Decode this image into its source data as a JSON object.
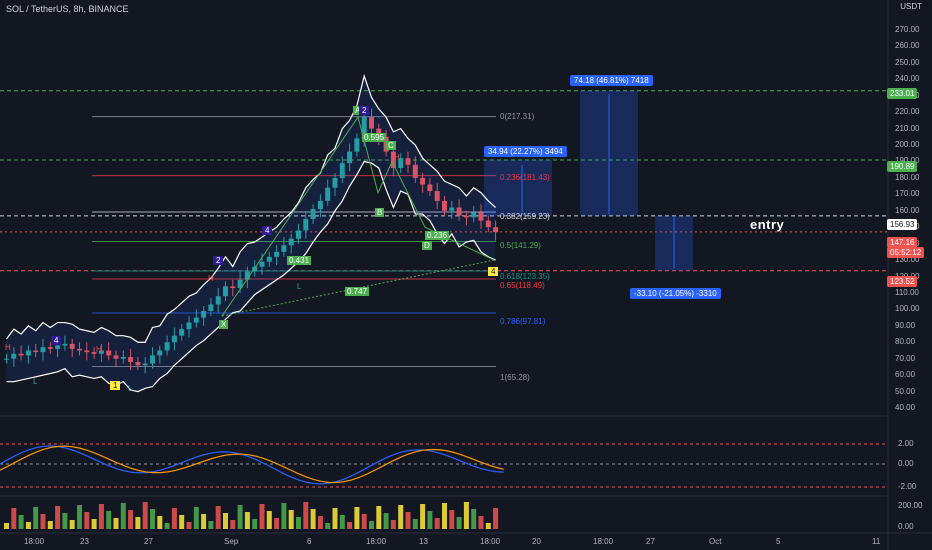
{
  "header": {
    "title": "SOL / TetherUS, 8h, BINANCE",
    "currency": "USDT"
  },
  "price_axis": {
    "ticks": [
      "270.00",
      "260.00",
      "250.00",
      "240.00",
      "230.00",
      "220.00",
      "210.00",
      "200.00",
      "190.00",
      "180.00",
      "170.00",
      "160.00",
      "150.00",
      "140.00",
      "130.00",
      "120.00",
      "110.00",
      "100.00",
      "90.00",
      "80.00",
      "70.00",
      "60.00",
      "50.00",
      "40.00"
    ],
    "badges": {
      "target_high": "233.01",
      "target_mid": "190.89",
      "entry_price": "156.93",
      "current_price": "147.16",
      "countdown": "05:52:12",
      "stop": "123.52"
    }
  },
  "indicator_axis": {
    "osc_ticks": [
      "2.00",
      "0.00",
      "-2.00"
    ],
    "vol_ticks": [
      "200.00",
      "0.00"
    ]
  },
  "time_axis": [
    "18:00",
    "23",
    "27",
    "Sep",
    "6",
    "18:00",
    "13",
    "18:00",
    "20",
    "18:00",
    "27",
    "Oct",
    "5",
    "11"
  ],
  "fib_levels": [
    {
      "label": "0(217.31)",
      "color": "#9598a1"
    },
    {
      "label": "0.236(181.43)",
      "color": "#f23645"
    },
    {
      "label": "0.382(159.23)",
      "color": "#d1d4dc"
    },
    {
      "label": "0.5(141.29)",
      "color": "#4caf50"
    },
    {
      "label": "0.618(123.35)",
      "color": "#089981"
    },
    {
      "label": "0.65(118.49)",
      "color": "#f23645"
    },
    {
      "label": "0.786(97.81)",
      "color": "#2962ff"
    },
    {
      "label": "1(65.28)",
      "color": "#9598a1"
    }
  ],
  "position_boxes": {
    "long_small": "34.94 (22.27%) 3494",
    "long_big": "74.18 (46.81%) 7418",
    "short": "-33.10 (-21.05%) -3310"
  },
  "pattern_labels": {
    "ratio_1": "0.595",
    "ratio_2": "0.431",
    "ratio_3": "0.236",
    "ratio_4": "0.747",
    "point_x": "X",
    "point_a": "A",
    "point_b": "B",
    "point_c": "C",
    "point_d": "D",
    "h1": "H",
    "h2": "H",
    "h3": "H",
    "h4": "H",
    "l1": "L",
    "l2": "L",
    "l3": "L",
    "wave_1": "1",
    "wave_2a": "2",
    "wave_2b": "2",
    "wave_4a": "4",
    "wave_4b": "4",
    "wave_4c": "4"
  },
  "annotation": {
    "entry": "entry"
  },
  "colors": {
    "background": "#131722",
    "up": "#26a69a",
    "down": "#ef5350",
    "accent": "#2962ff",
    "band": "#ffffff"
  },
  "chart_data": {
    "type": "candlestick",
    "symbol": "SOL / TetherUS",
    "interval": "8h",
    "ylim": [
      40,
      280
    ],
    "levels": {
      "target_high": 233.01,
      "target_mid": 190.89,
      "entry": 156.93,
      "current": 147.16,
      "stop": 123.52
    },
    "fib_values": [
      217.31,
      181.43,
      159.23,
      141.29,
      123.35,
      118.49,
      97.81,
      65.28
    ],
    "close_series": [
      70,
      73,
      72,
      75,
      74,
      77,
      76,
      78,
      79,
      76,
      75,
      74,
      73,
      75,
      72,
      70,
      71,
      68,
      66,
      67,
      72,
      75,
      80,
      84,
      88,
      92,
      95,
      99,
      103,
      108,
      114,
      113,
      118,
      123,
      126,
      129,
      132,
      135,
      139,
      143,
      148,
      155,
      161,
      166,
      174,
      180,
      189,
      196,
      204,
      217,
      210,
      205,
      196,
      186,
      192,
      188,
      180,
      176,
      172,
      166,
      160,
      162,
      157,
      156,
      159,
      154,
      150,
      147
    ]
  }
}
